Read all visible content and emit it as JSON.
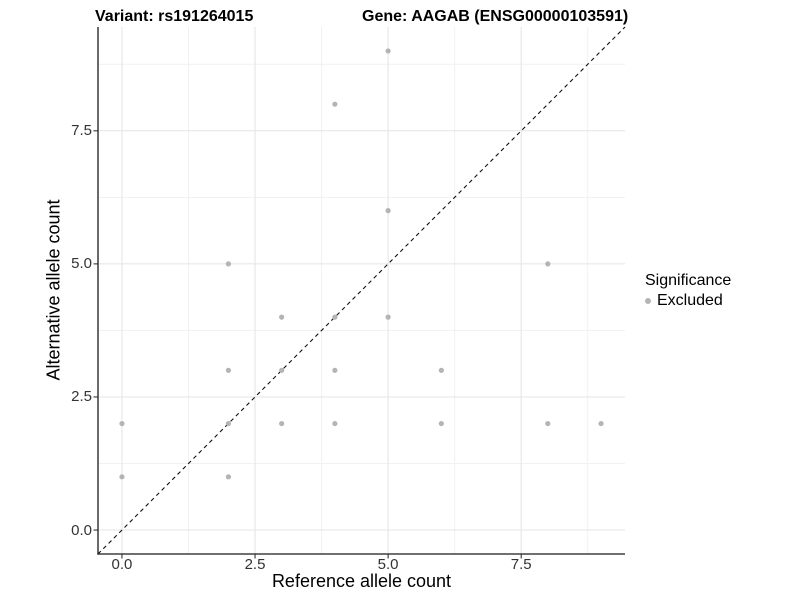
{
  "titles": {
    "variant": "Variant: rs191264015",
    "gene": "Gene: AAGAB (ENSG00000103591)"
  },
  "chart_data": {
    "type": "scatter",
    "title_left": "Variant: rs191264015",
    "title_right": "Gene: AAGAB (ENSG00000103591)",
    "xlabel": "Reference allele count",
    "ylabel": "Alternative allele count",
    "xlim": [
      -0.45,
      9.45
    ],
    "ylim": [
      -0.45,
      9.45
    ],
    "x_ticks": [
      0,
      2.5,
      5,
      7.5
    ],
    "y_ticks": [
      0,
      2.5,
      5,
      7.5
    ],
    "x_tick_labels": [
      "0.0",
      "2.5",
      "5.0",
      "7.5"
    ],
    "y_tick_labels": [
      "0.0",
      "2.5",
      "5.0",
      "7.5"
    ],
    "minor_ticks": [
      1.25,
      3.75,
      6.25,
      8.75
    ],
    "grid": true,
    "identity_line": {
      "style": "dashed",
      "from": [
        -0.45,
        -0.45
      ],
      "to": [
        9.45,
        9.45
      ]
    },
    "series": [
      {
        "name": "Excluded",
        "color": "#b4b4b4",
        "points": [
          [
            0,
            1
          ],
          [
            0,
            2
          ],
          [
            2,
            1
          ],
          [
            2,
            2
          ],
          [
            2,
            3
          ],
          [
            2,
            5
          ],
          [
            3,
            2
          ],
          [
            3,
            3
          ],
          [
            3,
            4
          ],
          [
            4,
            2
          ],
          [
            4,
            3
          ],
          [
            4,
            4
          ],
          [
            4,
            8
          ],
          [
            5,
            4
          ],
          [
            5,
            6
          ],
          [
            5,
            9
          ],
          [
            6,
            2
          ],
          [
            6,
            3
          ],
          [
            8,
            2
          ],
          [
            8,
            5
          ],
          [
            9,
            2
          ]
        ]
      }
    ],
    "legend": {
      "position": "right",
      "title": "Significance",
      "items": [
        {
          "label": "Excluded",
          "color": "#b4b4b4"
        }
      ]
    },
    "style": {
      "point_color": "#b4b4b4",
      "point_radius": 2.6,
      "grid_major": "#e4e4e4",
      "grid_minor": "#f1f1f1",
      "axis_color": "#1a1a1a",
      "tick_color": "#333333",
      "identity_line_color": "#111111",
      "background": "#ffffff"
    }
  }
}
